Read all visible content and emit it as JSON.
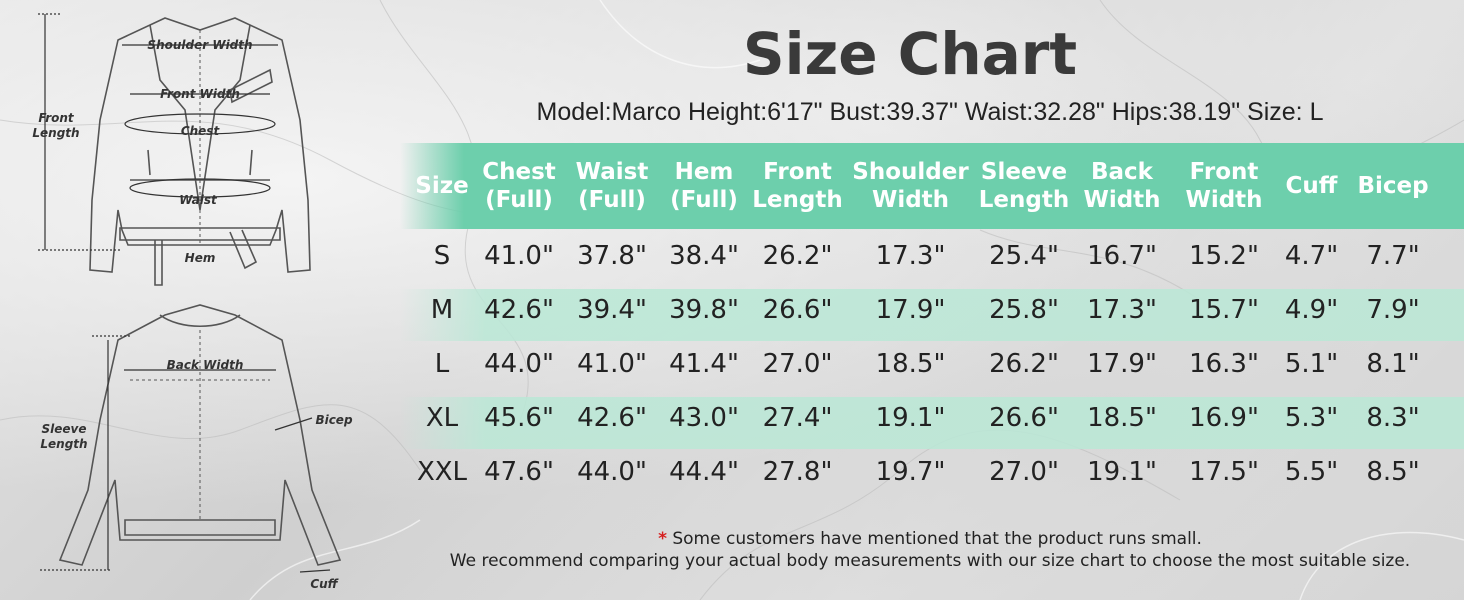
{
  "title": "Size Chart",
  "model_info": "Model:Marco Height:6'17\" Bust:39.37\" Waist:32.28\" Hips:38.19\" Size: L",
  "colors": {
    "header_band": "#6dcfac",
    "stripe_band": "#bae8d6",
    "accent_star": "#d62020"
  },
  "diagram": {
    "front": {
      "shoulder_width": "Shoulder Width",
      "front_width": "Front Width",
      "front_length_1": "Front",
      "front_length_2": "Length",
      "chest": "Chest",
      "waist": "Waist",
      "hem": "Hem"
    },
    "back": {
      "back_width": "Back Width",
      "sleeve_length_1": "Sleeve",
      "sleeve_length_2": "Length",
      "bicep": "Bicep",
      "cuff": "Cuff"
    }
  },
  "table": {
    "headers": [
      [
        "Size"
      ],
      [
        "Chest",
        "(Full)"
      ],
      [
        "Waist",
        "(Full)"
      ],
      [
        "Hem",
        "(Full)"
      ],
      [
        "Front",
        "Length"
      ],
      [
        "Shoulder",
        "Width"
      ],
      [
        "Sleeve",
        "Length"
      ],
      [
        "Back",
        "Width"
      ],
      [
        "Front",
        "Width"
      ],
      [
        "Cuff"
      ],
      [
        "Bicep"
      ]
    ],
    "rows": [
      [
        "S",
        "41.0\"",
        "37.8\"",
        "38.4\"",
        "26.2\"",
        "17.3\"",
        "25.4\"",
        "16.7\"",
        "15.2\"",
        "4.7\"",
        "7.7\""
      ],
      [
        "M",
        "42.6\"",
        "39.4\"",
        "39.8\"",
        "26.6\"",
        "17.9\"",
        "25.8\"",
        "17.3\"",
        "15.7\"",
        "4.9\"",
        "7.9\""
      ],
      [
        "L",
        "44.0\"",
        "41.0\"",
        "41.4\"",
        "27.0\"",
        "18.5\"",
        "26.2\"",
        "17.9\"",
        "16.3\"",
        "5.1\"",
        "8.1\""
      ],
      [
        "XL",
        "45.6\"",
        "42.6\"",
        "43.0\"",
        "27.4\"",
        "19.1\"",
        "26.6\"",
        "18.5\"",
        "16.9\"",
        "5.3\"",
        "8.3\""
      ],
      [
        "XXL",
        "47.6\"",
        "44.0\"",
        "44.4\"",
        "27.8\"",
        "19.7\"",
        "27.0\"",
        "19.1\"",
        "17.5\"",
        "5.5\"",
        "8.5\""
      ]
    ]
  },
  "notes": {
    "star": "*",
    "line1": "Some customers have mentioned that the product runs small.",
    "line2": "We recommend comparing your actual body measurements with our size chart to choose the most suitable size."
  }
}
